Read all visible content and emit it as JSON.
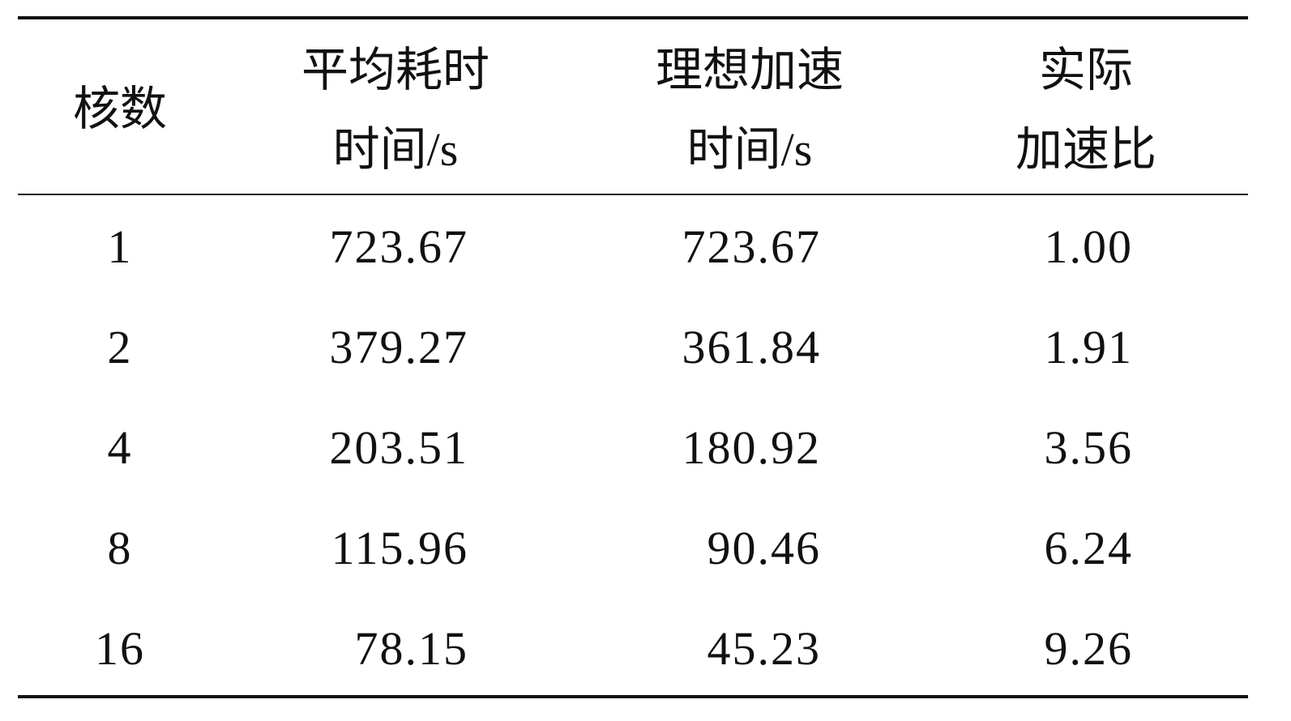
{
  "table": {
    "headers": [
      {
        "lines": [
          "核数"
        ]
      },
      {
        "lines": [
          "平均耗时",
          "时间/s"
        ]
      },
      {
        "lines": [
          "理想加速",
          "时间/s"
        ]
      },
      {
        "lines": [
          "实际",
          "加速比"
        ]
      }
    ],
    "rows": [
      [
        "1",
        "723.67",
        "723.67",
        "1.00"
      ],
      [
        "2",
        "379.27",
        "361.84",
        "1.91"
      ],
      [
        "4",
        "203.51",
        "180.92",
        "3.56"
      ],
      [
        "8",
        "115.96",
        "90.46",
        "6.24"
      ],
      [
        "16",
        "78.15",
        "45.23",
        "9.26"
      ]
    ]
  }
}
